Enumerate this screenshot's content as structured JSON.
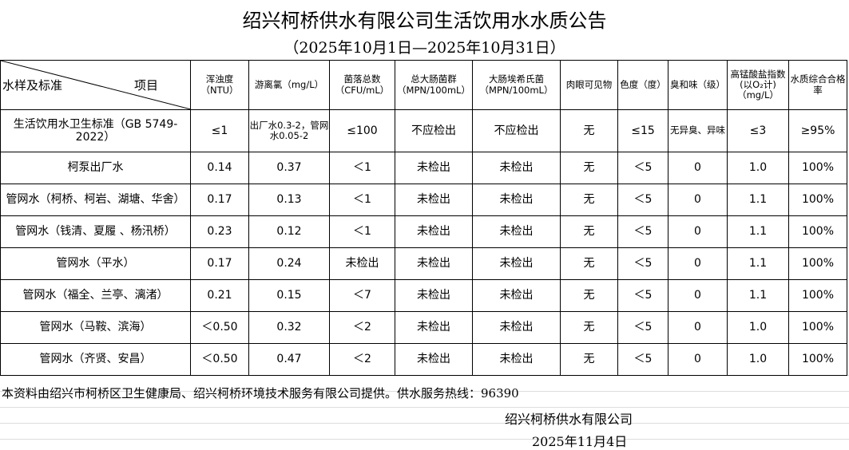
{
  "title": "绍兴柯桥供水有限公司生活饮用水水质公告",
  "subtitle": "（2025年10月1日—2025年10月31日）",
  "header": {
    "row_label": "水样及标准",
    "col_label": "项目",
    "columns": [
      "浑浊度（NTU）",
      "游离氯（mg/L）",
      "菌落总数（CFU/mL）",
      "总大肠菌群（MPN/100mL）",
      "大肠埃希氏菌（MPN/100mL）",
      "肉眼可见物",
      "色度（度）",
      "臭和味（级）",
      "高锰酸盐指数(以O₂计)（mg/L）",
      "水质综合合格率"
    ]
  },
  "standard": {
    "name": "生活饮用水卫生标准（GB 5749-2022）",
    "values": [
      "≤1",
      "出厂水0.3-2，管网水0.05-2",
      "≤100",
      "不应检出",
      "不应检出",
      "无",
      "≤15",
      "无异臭、异味",
      "≤3",
      "≥95%"
    ]
  },
  "rows": [
    {
      "name": "柯泵出厂水",
      "values": [
        "0.14",
        "0.37",
        "＜1",
        "未检出",
        "未检出",
        "无",
        "＜5",
        "0",
        "1.0",
        "100%"
      ]
    },
    {
      "name": "管网水（柯桥、柯岩、湖塘、华舍）",
      "values": [
        "0.17",
        "0.13",
        "＜1",
        "未检出",
        "未检出",
        "无",
        "＜5",
        "0",
        "1.1",
        "100%"
      ]
    },
    {
      "name": "管网水（钱清、夏履 、杨汛桥）",
      "values": [
        "0.23",
        "0.12",
        "＜1",
        "未检出",
        "未检出",
        "无",
        "＜5",
        "0",
        "1.1",
        "100%"
      ]
    },
    {
      "name": "管网水（平水）",
      "values": [
        "0.17",
        "0.24",
        "未检出",
        "未检出",
        "未检出",
        "无",
        "＜5",
        "0",
        "1.1",
        "100%"
      ]
    },
    {
      "name": "管网水（福全、兰亭、漓渚）",
      "values": [
        "0.21",
        "0.15",
        "＜7",
        "未检出",
        "未检出",
        "无",
        "＜5",
        "0",
        "1.1",
        "100%"
      ]
    },
    {
      "name": "管网水（马鞍、滨海）",
      "values": [
        "＜0.50",
        "0.32",
        "＜2",
        "未检出",
        "未检出",
        "无",
        "＜5",
        "0",
        "1.0",
        "100%"
      ]
    },
    {
      "name": "管网水（齐贤、安昌）",
      "values": [
        "＜0.50",
        "0.47",
        "＜2",
        "未检出",
        "未检出",
        "无",
        "＜5",
        "0",
        "1.0",
        "100%"
      ]
    }
  ],
  "footer": {
    "note": "本资料由绍兴市柯桥区卫生健康局、绍兴柯桥环境技术服务有限公司提供。供水服务热线：96390",
    "org": "绍兴柯桥供水有限公司",
    "date": "2025年11月4日"
  }
}
